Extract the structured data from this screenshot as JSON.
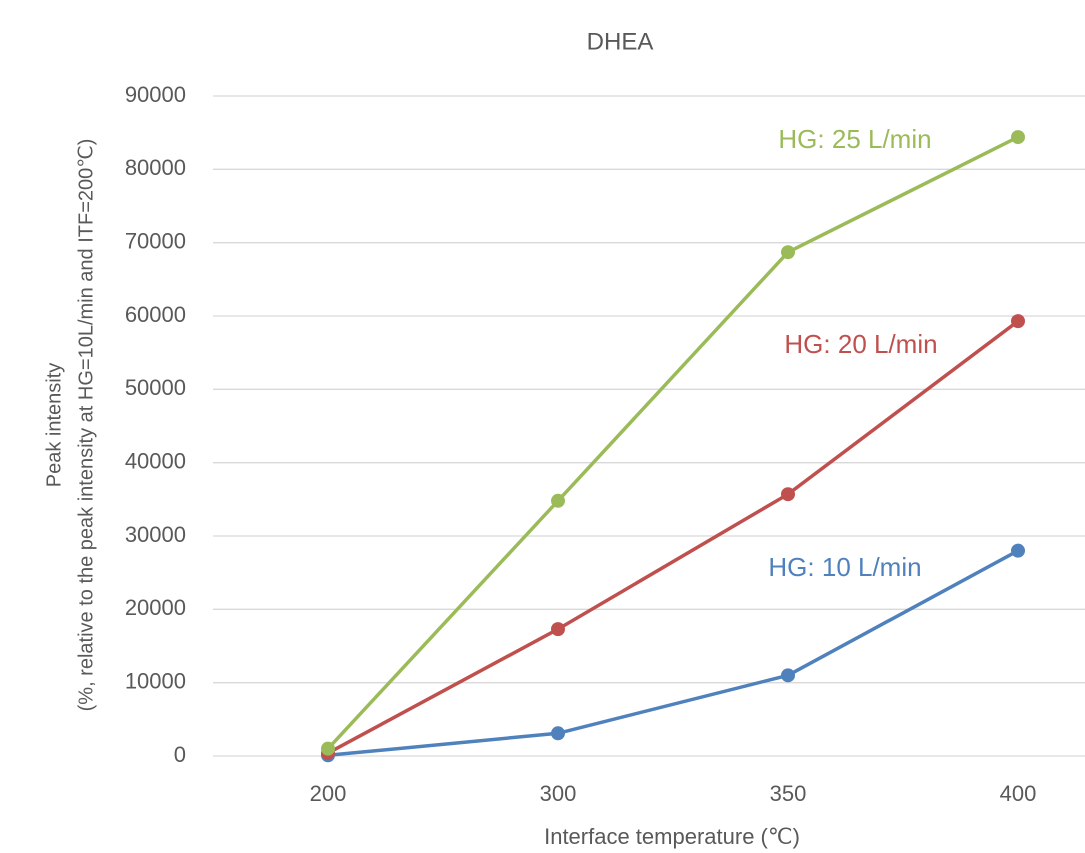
{
  "chart_data": {
    "type": "line",
    "title": "DHEA",
    "x_label": "Interface temperature (℃)",
    "y_label": [
      "Peak intensity",
      "(%, relative to the peak intensity at HG=10L/min and ITF=200℃)"
    ],
    "categories": [
      "200",
      "300",
      "350",
      "400"
    ],
    "series": [
      {
        "name": "HG: 10 L/min",
        "color": "#4f81bd",
        "values": [
          100,
          3100,
          11000,
          28000
        ]
      },
      {
        "name": "HG: 20 L/min",
        "color": "#c0504d",
        "values": [
          400,
          17300,
          35700,
          59300
        ]
      },
      {
        "name": "HG: 25 L/min",
        "color": "#9bbb59",
        "values": [
          1000,
          34800,
          68700,
          84400
        ]
      }
    ],
    "ylim": [
      0,
      90000
    ],
    "yticks": [
      0,
      10000,
      20000,
      30000,
      40000,
      50000,
      60000,
      70000,
      80000,
      90000
    ],
    "grid": true
  }
}
